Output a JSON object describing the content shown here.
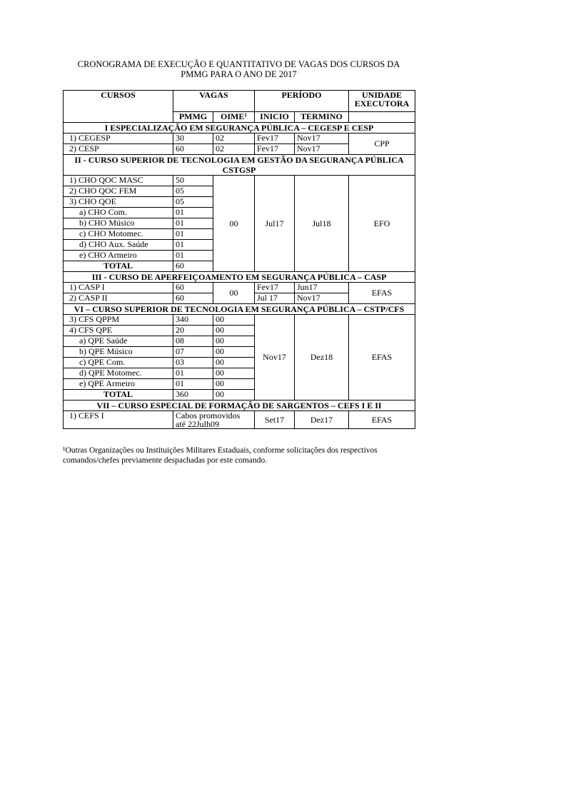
{
  "title": [
    "CRONOGRAMA DE EXECUÇÃO E QUANTITATIVO DE VAGAS DOS CURSOS DA",
    "PMMG PARA O ANO DE 2017"
  ],
  "header": {
    "cursos": "CURSOS",
    "vagas": "VAGAS",
    "periodo": "PERÍODO",
    "unidade": "UNIDADE EXECUTORA",
    "pmmg": "PMMG",
    "oime": "OIME¹",
    "inicio": "INICIO",
    "termino": "TERMINO"
  },
  "sections": [
    {
      "title": "I ESPECIALIZAÇÃO EM SEGURANÇA PÚBLICA – CEGESP E CESP",
      "rows": [
        {
          "curso": "1)  CEGESP",
          "pmmg": "30",
          "oime": "02",
          "inicio": "Fev17",
          "termino": "Nov17"
        },
        {
          "curso": "2)  CESP",
          "pmmg": "60",
          "oime": "02",
          "inicio": "Fev17",
          "termino": "Nov17"
        }
      ],
      "unidade": "CPP"
    },
    {
      "title": "II - CURSO SUPERIOR DE TECNOLOGIA EM GESTÃO DA SEGURANÇA PÚBLICA CSTGSP",
      "rows": [
        {
          "curso": "1)  CHO QOC MASC",
          "pmmg": "50"
        },
        {
          "curso": "2)  CHO QOC FEM",
          "pmmg": "05"
        },
        {
          "curso": "3)  CHO QOE",
          "pmmg": "05"
        },
        {
          "curso": "a)   CHO Com.",
          "pmmg": "01"
        },
        {
          "curso": "b)   CHO Músico",
          "pmmg": "01"
        },
        {
          "curso": "c)   CHO Motomec.",
          "pmmg": "01"
        },
        {
          "curso": "d)   CHO Aux. Saúde",
          "pmmg": "01"
        },
        {
          "curso": "e)   CHO Armeiro",
          "pmmg": "01"
        },
        {
          "curso": "TOTAL",
          "pmmg": "60"
        }
      ],
      "oime": "00",
      "inicio": "Jul17",
      "termino": "Jul18",
      "unidade": "EFO"
    },
    {
      "title": "III - CURSO DE APERFEIÇOAMENTO EM SEGURANÇA PÚBLICA – CASP",
      "rows": [
        {
          "curso": "1)  CASP I",
          "pmmg": "60",
          "inicio": "Fev17",
          "termino": "Jun17"
        },
        {
          "curso": "2)  CASP II",
          "pmmg": "60",
          "inicio": "Jul 17",
          "termino": "Nov17"
        }
      ],
      "oime": "00",
      "unidade": "EFAS"
    },
    {
      "title": "VI – CURSO SUPERIOR DE TECNOLOGIA EM SEGURANÇA PÚBLICA – CSTP/CFS",
      "rows": [
        {
          "curso": "3)  CFS QPPM",
          "pmmg": "340",
          "oime": "00"
        },
        {
          "curso": "4)  CFS QPE",
          "pmmg": "20",
          "oime": "00"
        },
        {
          "curso": "a)   QPE Saúde",
          "pmmg": "08",
          "oime": "00"
        },
        {
          "curso": "b)   QPE Músico",
          "pmmg": "07",
          "oime": "00"
        },
        {
          "curso": "c)   QPE Com.",
          "pmmg": "03",
          "oime": "00"
        },
        {
          "curso": "d)   QPE Motomec.",
          "pmmg": "01",
          "oime": "00"
        },
        {
          "curso": "e)   QPE Armeiro",
          "pmmg": "01",
          "oime": "00"
        },
        {
          "curso": "TOTAL",
          "pmmg": "360",
          "oime": "00"
        }
      ],
      "inicio": "Nov17",
      "termino": "Dez18",
      "unidade": "EFAS"
    },
    {
      "title": "VII – CURSO ESPECIAL DE FORMAÇÃO DE SARGENTOS – CEFS I E II",
      "rows": [
        {
          "curso": "1)  CEFS I",
          "vagas": "Cabos promovidos até 22Julh09",
          "inicio": "Set17",
          "termino": "Dez17"
        }
      ],
      "unidade": "EFAS"
    }
  ],
  "footnote": "¹Outras Organizações ou Instituições Militares Estaduais, conforme solicitações dos respectivos comandos/chefes previamente despachadas por este comando."
}
